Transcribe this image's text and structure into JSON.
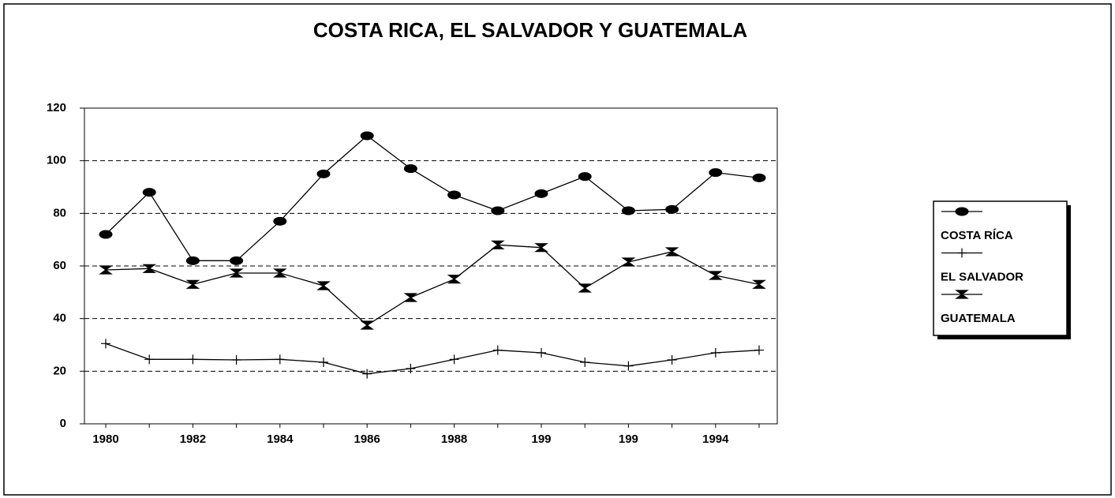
{
  "chart_data": {
    "type": "line",
    "title": "COSTA RICA, EL SALVADOR Y GUATEMALA",
    "categories": [
      "1980",
      null,
      "1982",
      null,
      "1984",
      null,
      "1986",
      null,
      "1988",
      null,
      "199",
      null,
      "199",
      null,
      "1994",
      null
    ],
    "series": [
      {
        "name": "COSTA RÍCA",
        "color": "#000000",
        "marker": "circle",
        "values": [
          72,
          88,
          62,
          62,
          77,
          95,
          109.5,
          97,
          87,
          81,
          87.5,
          94,
          81,
          81.5,
          95.5,
          93.5
        ]
      },
      {
        "name": "EL SALVADOR",
        "color": "#000000",
        "marker": "plus",
        "values": [
          30.5,
          24.5,
          24.5,
          24.3,
          24.5,
          23.4,
          19,
          21,
          24.5,
          28,
          27,
          23.4,
          22,
          24.3,
          27,
          28
        ]
      },
      {
        "name": "GUATEMALA",
        "color": "#000000",
        "marker": "bowtie",
        "values": [
          58.5,
          59,
          53,
          57.3,
          57.3,
          52.5,
          37.5,
          48,
          55,
          68,
          67,
          51.6,
          61.5,
          65.4,
          56.4,
          53
        ]
      }
    ],
    "ylim": [
      0,
      120
    ],
    "yticks": [
      0,
      20,
      40,
      60,
      80,
      100,
      120
    ],
    "grid": true,
    "legend": "right"
  }
}
